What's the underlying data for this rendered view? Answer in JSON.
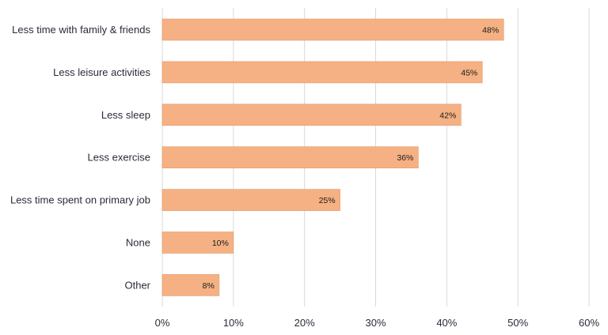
{
  "chart_data": {
    "type": "bar",
    "orientation": "horizontal",
    "categories": [
      "Less time with family & friends",
      "Less leisure activities",
      "Less sleep",
      "Less exercise",
      "Less time spent on primary job",
      "None",
      "Other"
    ],
    "values": [
      48,
      45,
      42,
      36,
      25,
      10,
      8
    ],
    "data_labels": [
      "48%",
      "45%",
      "42%",
      "36%",
      "25%",
      "10%",
      "8%"
    ],
    "xticks": [
      "0%",
      "10%",
      "20%",
      "30%",
      "40%",
      "50%",
      "60%"
    ],
    "xlim": [
      0,
      60
    ],
    "grid": "vertical",
    "bar_color": "#F5B183",
    "bar_edge_color": "#E39A68"
  }
}
